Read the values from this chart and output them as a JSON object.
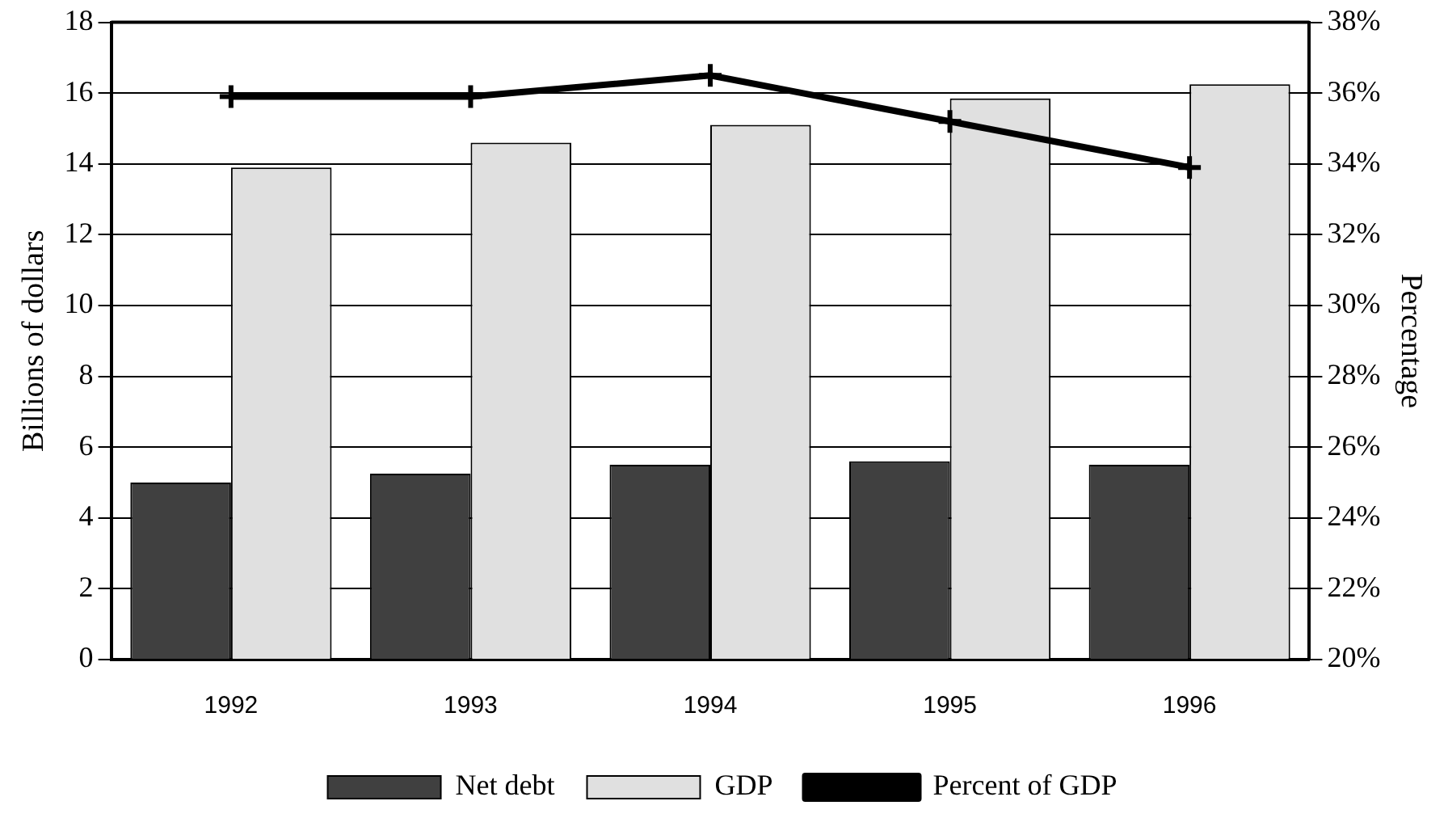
{
  "chart_data": {
    "type": "bar",
    "categories": [
      "1992",
      "1993",
      "1994",
      "1995",
      "1996"
    ],
    "ylabel": "Billions of dollars",
    "y2label": "Percentage",
    "series": [
      {
        "name": "Net debt",
        "color": "#404040",
        "values": [
          5.0,
          5.25,
          5.5,
          5.6,
          5.5
        ]
      },
      {
        "name": "GDP",
        "color": "#e0e0e0",
        "values": [
          13.9,
          14.6,
          15.1,
          15.85,
          16.25
        ]
      },
      {
        "name": "Percent of GDP",
        "type": "line",
        "axis": "y2",
        "color": "#000000",
        "marker": "cross",
        "values": [
          35.9,
          35.9,
          36.5,
          35.2,
          33.9
        ]
      }
    ],
    "ylim": [
      0,
      18
    ],
    "yticks": [
      0,
      2,
      4,
      6,
      8,
      10,
      12,
      14,
      16,
      18
    ],
    "y2lim": [
      20,
      38
    ],
    "y2ticks": [
      {
        "value": 20,
        "label": "20%"
      },
      {
        "value": 22,
        "label": "22%"
      },
      {
        "value": 24,
        "label": "24%"
      },
      {
        "value": 26,
        "label": "26%"
      },
      {
        "value": 28,
        "label": "28%"
      },
      {
        "value": 30,
        "label": "30%"
      },
      {
        "value": 32,
        "label": "32%"
      },
      {
        "value": 34,
        "label": "34%"
      },
      {
        "value": 36,
        "label": "36%"
      },
      {
        "value": 38,
        "label": "38%"
      }
    ],
    "grid": "y",
    "legend": "bottom"
  }
}
